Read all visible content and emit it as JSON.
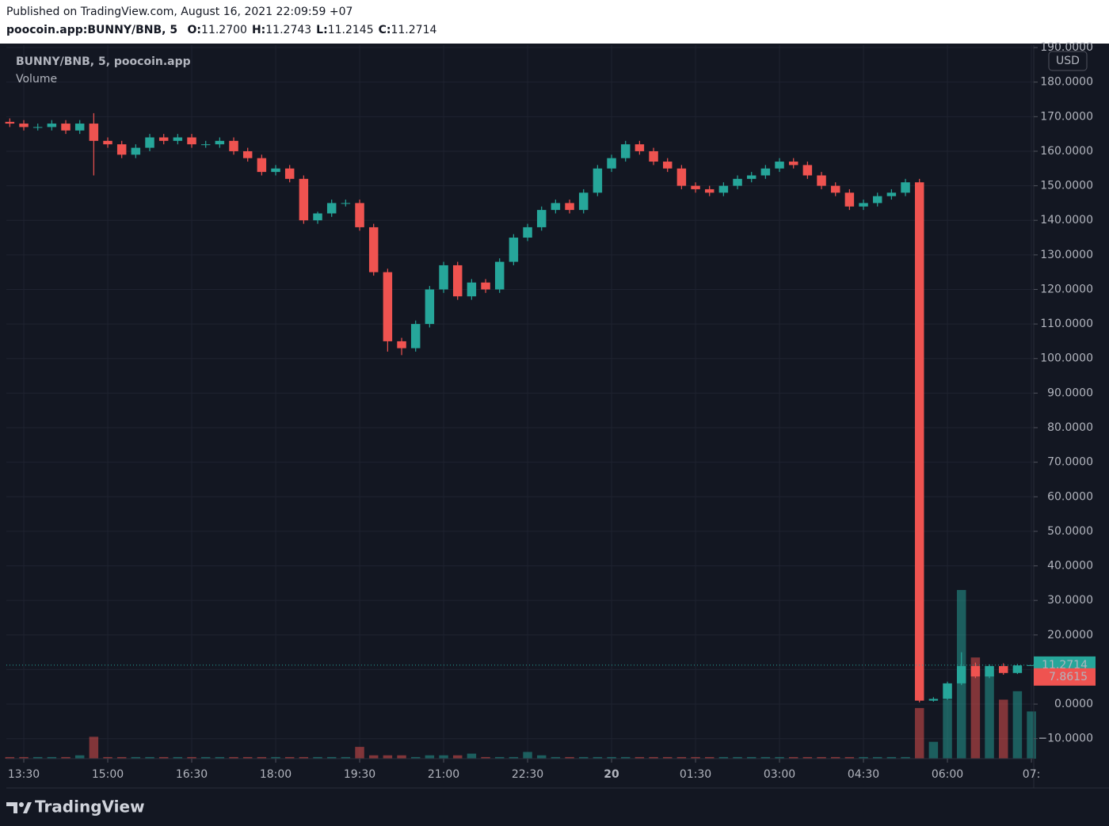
{
  "header": {
    "published": "Published on TradingView.com, August 16, 2021 22:09:59 +07",
    "symbol": "poocoin.app:BUNNY/BNB, 5",
    "ohlc": [
      {
        "key": "O:",
        "value": "11.2700"
      },
      {
        "key": "H:",
        "value": "11.2743"
      },
      {
        "key": "L:",
        "value": "11.2145"
      },
      {
        "key": "C:",
        "value": "11.2714"
      }
    ]
  },
  "legend": {
    "series": "BUNNY/BNB, 5, poocoin.app",
    "volume": "Volume"
  },
  "currency": "USD",
  "footer": {
    "logo": "TradingView"
  },
  "chart_data": {
    "type": "candlestick",
    "up_color": "#26a69a",
    "down_color": "#ef5350",
    "x": [
      -15,
      0,
      15,
      30,
      45,
      60,
      75,
      90,
      105,
      120,
      135,
      150,
      165,
      180,
      195,
      210,
      225,
      240,
      255,
      270,
      285,
      300,
      315,
      330,
      345,
      360,
      375,
      390,
      405,
      420,
      435,
      450,
      465,
      480,
      495,
      510,
      525,
      540,
      555,
      570,
      585,
      600,
      615,
      630,
      645,
      660,
      675,
      690,
      705,
      720,
      735,
      750,
      765,
      780,
      795,
      810,
      825,
      840,
      855,
      870,
      885,
      900,
      915,
      930,
      945,
      960,
      975,
      990,
      1005,
      1020,
      1035,
      1050,
      1065,
      1080
    ],
    "open": [
      168.5,
      168,
      167,
      167,
      168,
      166,
      168,
      163,
      162,
      159,
      161,
      164,
      163,
      164,
      162,
      162,
      163,
      160,
      158,
      154,
      155,
      152,
      140,
      142,
      145,
      145,
      138,
      125,
      105,
      103,
      110,
      120,
      127,
      118,
      122,
      120,
      128,
      135,
      138,
      143,
      145,
      143,
      148,
      155,
      158,
      162,
      160,
      157,
      155,
      150,
      149,
      148,
      150,
      152,
      153,
      155,
      157,
      156,
      153,
      150,
      148,
      144,
      145,
      147,
      148,
      151,
      1,
      1.5,
      6,
      11,
      8,
      11,
      9,
      11.27
    ],
    "high": [
      169.5,
      169,
      168,
      169,
      169,
      169,
      171,
      164,
      163,
      162,
      165,
      165,
      165,
      165,
      163,
      164,
      164,
      161,
      159,
      156,
      156,
      153,
      142.5,
      146,
      146,
      146,
      139,
      126,
      106,
      111,
      121,
      128,
      128,
      123,
      123,
      129,
      136,
      139,
      144,
      146,
      146,
      149,
      156,
      159,
      163,
      163,
      161,
      158,
      156,
      151,
      150,
      151,
      153,
      154,
      156,
      158,
      158,
      157,
      154,
      151,
      149,
      146,
      148,
      149,
      152,
      152,
      2,
      6.5,
      15,
      12,
      11.5,
      11.8,
      11.6,
      11.2743
    ],
    "low": [
      167,
      166,
      166,
      166,
      165,
      165,
      153,
      161,
      158,
      158,
      160,
      162,
      162,
      161,
      161,
      161,
      159,
      157,
      153,
      153,
      151,
      139,
      139,
      141,
      144,
      137,
      124,
      102,
      101,
      102,
      109,
      119,
      117,
      117,
      119,
      119,
      127,
      134,
      137,
      142,
      142,
      142,
      147,
      154,
      157,
      159,
      156,
      154,
      149,
      148,
      147,
      147,
      149,
      151,
      152,
      154,
      155,
      152,
      149,
      147,
      143,
      143,
      144,
      146,
      147,
      0.5,
      0.7,
      1.2,
      5.5,
      7.5,
      7.5,
      8.5,
      8.7,
      11.2145
    ],
    "close": [
      168,
      167,
      167,
      168,
      166,
      168,
      163,
      162,
      159,
      161,
      164,
      163,
      164,
      162,
      162,
      163,
      160,
      158,
      154,
      155,
      152,
      140,
      142,
      145,
      145,
      138,
      125,
      105,
      103,
      110,
      120,
      127,
      118,
      122,
      120,
      128,
      135,
      138,
      143,
      145,
      143,
      148,
      155,
      158,
      162,
      160,
      157,
      155,
      150,
      149,
      148,
      150,
      152,
      153,
      155,
      157,
      156,
      153,
      150,
      148,
      144,
      145,
      147,
      148,
      151,
      1,
      1.5,
      6,
      11,
      8,
      11,
      9,
      11.2,
      11.2714
    ],
    "volume": [
      1,
      1,
      1,
      1,
      1,
      2,
      13,
      1,
      1,
      1,
      1,
      1,
      1,
      1,
      1,
      1,
      1,
      1,
      1,
      1,
      1,
      1,
      1,
      1,
      1,
      7,
      2,
      2,
      2,
      1,
      2,
      2,
      2,
      3,
      1,
      1,
      1,
      4,
      2,
      1,
      1,
      1,
      1,
      1,
      1,
      1,
      1,
      1,
      1,
      1,
      1,
      1,
      1,
      1,
      1,
      1,
      1,
      1,
      1,
      1,
      1,
      1,
      1,
      1,
      1,
      30,
      10,
      35,
      100,
      60,
      50,
      35,
      40,
      28
    ],
    "volume_ylim": [
      0,
      100
    ],
    "xlim": [
      -18.7,
      1082.5
    ],
    "xticks": [
      {
        "value": 0,
        "label": "13:30"
      },
      {
        "value": 90,
        "label": "15:00"
      },
      {
        "value": 180,
        "label": "16:30"
      },
      {
        "value": 270,
        "label": "18:00"
      },
      {
        "value": 360,
        "label": "19:30"
      },
      {
        "value": 450,
        "label": "21:00"
      },
      {
        "value": 540,
        "label": "22:30"
      },
      {
        "value": 630,
        "label": "20"
      },
      {
        "value": 720,
        "label": "01:30"
      },
      {
        "value": 810,
        "label": "03:00"
      },
      {
        "value": 900,
        "label": "04:30"
      },
      {
        "value": 990,
        "label": "06:00"
      },
      {
        "value": 1080,
        "label": "07:"
      }
    ],
    "ylim": [
      -15.8,
      190.7
    ],
    "yticks": [
      {
        "value": 190,
        "label": "190.0000"
      },
      {
        "value": 180,
        "label": "180.0000"
      },
      {
        "value": 170,
        "label": "170.0000"
      },
      {
        "value": 160,
        "label": "160.0000"
      },
      {
        "value": 150,
        "label": "150.0000"
      },
      {
        "value": 140,
        "label": "140.0000"
      },
      {
        "value": 130,
        "label": "130.0000"
      },
      {
        "value": 120,
        "label": "120.0000"
      },
      {
        "value": 110,
        "label": "110.0000"
      },
      {
        "value": 100,
        "label": "100.0000"
      },
      {
        "value": 90,
        "label": "90.0000"
      },
      {
        "value": 80,
        "label": "80.0000"
      },
      {
        "value": 70,
        "label": "70.0000"
      },
      {
        "value": 60,
        "label": "60.0000"
      },
      {
        "value": 50,
        "label": "50.0000"
      },
      {
        "value": 40,
        "label": "40.0000"
      },
      {
        "value": 30,
        "label": "30.0000"
      },
      {
        "value": 20,
        "label": "20.0000"
      },
      {
        "value": 10,
        "label": "10.0000"
      },
      {
        "value": 0,
        "label": "0.0000"
      },
      {
        "value": -10,
        "label": "−10.0000"
      }
    ],
    "price_labels": [
      {
        "value": 11.2714,
        "color": "#26a69a"
      },
      {
        "value": 7.8615,
        "color": "#ef5350"
      }
    ],
    "grid": true
  }
}
